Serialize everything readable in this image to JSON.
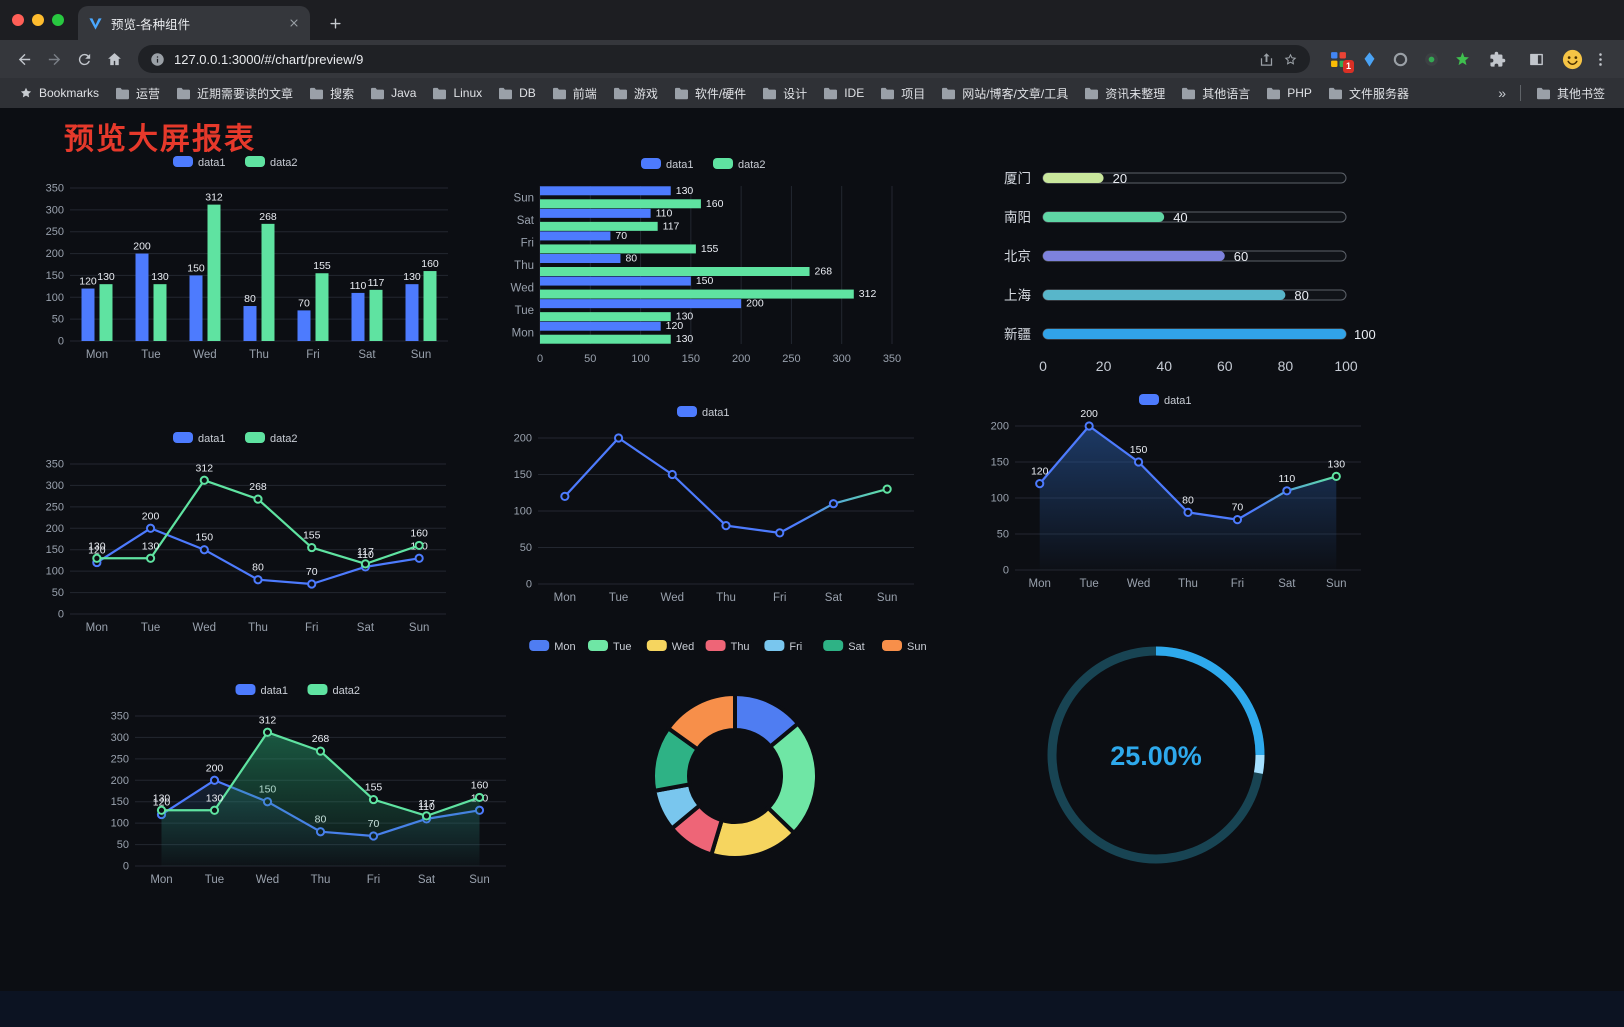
{
  "browser": {
    "tab_title": "预览-各种组件",
    "url": "127.0.0.1:3000/#/chart/preview/9",
    "extension_badge": "1",
    "bookmarks_label": "Bookmarks",
    "bookmarks": [
      "运营",
      "近期需要读的文章",
      "搜索",
      "Java",
      "Linux",
      "DB",
      "前端",
      "游戏",
      "软件/硬件",
      "设计",
      "IDE",
      "项目",
      "网站/博客/文章/工具",
      "资讯未整理",
      "其他语言",
      "PHP",
      "文件服务器"
    ],
    "bookmarks_overflow": "»",
    "other_bookmarks": "其他书签"
  },
  "page": {
    "title": "预览大屏报表",
    "title_color": "#e6392b",
    "background": "#0c0e13"
  },
  "chart_data": [
    {
      "type": "bar",
      "categories": [
        "Mon",
        "Tue",
        "Wed",
        "Thu",
        "Fri",
        "Sat",
        "Sun"
      ],
      "series": [
        {
          "name": "data1",
          "color": "#4d7bfe",
          "values": [
            120,
            200,
            150,
            80,
            70,
            110,
            130
          ]
        },
        {
          "name": "data2",
          "color": "#5fe3a1",
          "values": [
            130,
            130,
            312,
            268,
            155,
            117,
            160
          ]
        }
      ],
      "ylim": [
        0,
        350
      ],
      "ytick_step": 50,
      "value_labels": true,
      "legend_position": "top",
      "grid": true
    },
    {
      "type": "hbar",
      "categories": [
        "Mon",
        "Tue",
        "Wed",
        "Thu",
        "Fri",
        "Sat",
        "Sun"
      ],
      "series": [
        {
          "name": "data1",
          "color": "#4d7bfe",
          "values": [
            120,
            200,
            150,
            80,
            70,
            110,
            130
          ]
        },
        {
          "name": "data2",
          "color": "#5fe3a1",
          "values": [
            130,
            130,
            312,
            268,
            155,
            117,
            160
          ]
        }
      ],
      "xlim": [
        0,
        350
      ],
      "xtick_step": 50,
      "value_labels": true,
      "legend_position": "top",
      "grid": true
    },
    {
      "type": "progress",
      "max": 100,
      "ticks": [
        0,
        20,
        40,
        60,
        80,
        100
      ],
      "items": [
        {
          "label": "厦门",
          "value": 20,
          "color": "#c9e79c"
        },
        {
          "label": "南阳",
          "value": 40,
          "color": "#5fd6a5"
        },
        {
          "label": "北京",
          "value": 60,
          "color": "#7d82dd"
        },
        {
          "label": "上海",
          "value": 80,
          "color": "#58b6ca"
        },
        {
          "label": "新疆",
          "value": 100,
          "color": "#31a3e8"
        }
      ]
    },
    {
      "type": "line",
      "categories": [
        "Mon",
        "Tue",
        "Wed",
        "Thu",
        "Fri",
        "Sat",
        "Sun"
      ],
      "series": [
        {
          "name": "data1",
          "color": "#4d7bfe",
          "values": [
            120,
            200,
            150,
            80,
            70,
            110,
            130
          ],
          "labels": true
        },
        {
          "name": "data2",
          "color": "#5fe3a1",
          "values": [
            130,
            130,
            312,
            268,
            155,
            117,
            160
          ],
          "labels": true
        }
      ],
      "ylim": [
        0,
        350
      ],
      "ytick_step": 50,
      "legend_position": "top",
      "grid": true
    },
    {
      "type": "line",
      "categories": [
        "Mon",
        "Tue",
        "Wed",
        "Thu",
        "Fri",
        "Sat",
        "Sun"
      ],
      "series": [
        {
          "name": "data1",
          "color": "#4d7bfe",
          "gradient": [
            "#4d7bfe",
            "#5fe3a1"
          ],
          "values": [
            120,
            200,
            150,
            80,
            70,
            110,
            130
          ],
          "labels": false
        }
      ],
      "ylim": [
        0,
        200
      ],
      "ytick_step": 50,
      "legend_position": "top",
      "grid": true
    },
    {
      "type": "line",
      "categories": [
        "Mon",
        "Tue",
        "Wed",
        "Thu",
        "Fri",
        "Sat",
        "Sun"
      ],
      "series": [
        {
          "name": "data1",
          "color": "#4d7bfe",
          "gradient": [
            "#4d7bfe",
            "#5fe3a1"
          ],
          "values": [
            120,
            200,
            150,
            80,
            70,
            110,
            130
          ],
          "labels": true,
          "area": "#2a5da8",
          "area_opacity": 0.55
        }
      ],
      "ylim": [
        0,
        200
      ],
      "ytick_step": 50,
      "legend_position": "top",
      "grid": true
    },
    {
      "type": "line",
      "categories": [
        "Mon",
        "Tue",
        "Wed",
        "Thu",
        "Fri",
        "Sat",
        "Sun"
      ],
      "series": [
        {
          "name": "data1",
          "color": "#4d7bfe",
          "values": [
            120,
            200,
            150,
            80,
            70,
            110,
            130
          ],
          "labels": true,
          "area": "#2f5d92",
          "area_opacity": 0.25
        },
        {
          "name": "data2",
          "color": "#5fe3a1",
          "values": [
            130,
            130,
            312,
            268,
            155,
            117,
            160
          ],
          "labels": true,
          "area": "#27a36f",
          "area_opacity": 0.5
        }
      ],
      "ylim": [
        0,
        350
      ],
      "ytick_step": 50,
      "legend_position": "top",
      "grid": true
    },
    {
      "type": "pie",
      "inner_ratio": 0.56,
      "legend_position": "top",
      "items": [
        {
          "name": "Mon",
          "value": 120,
          "color": "#4f7df2"
        },
        {
          "name": "Tue",
          "value": 200,
          "color": "#6fe6a5"
        },
        {
          "name": "Wed",
          "value": 150,
          "color": "#f6d55f"
        },
        {
          "name": "Thu",
          "value": 80,
          "color": "#ee6577"
        },
        {
          "name": "Fri",
          "value": 70,
          "color": "#79c6ee"
        },
        {
          "name": "Sat",
          "value": 110,
          "color": "#2eb285"
        },
        {
          "name": "Sun",
          "value": 130,
          "color": "#f78f4a"
        }
      ]
    },
    {
      "type": "gauge",
      "value": 25,
      "label": "25.00%",
      "color": "#2ea9ec",
      "track_color": "#184453",
      "cap_color": "#a5e0ff"
    }
  ]
}
